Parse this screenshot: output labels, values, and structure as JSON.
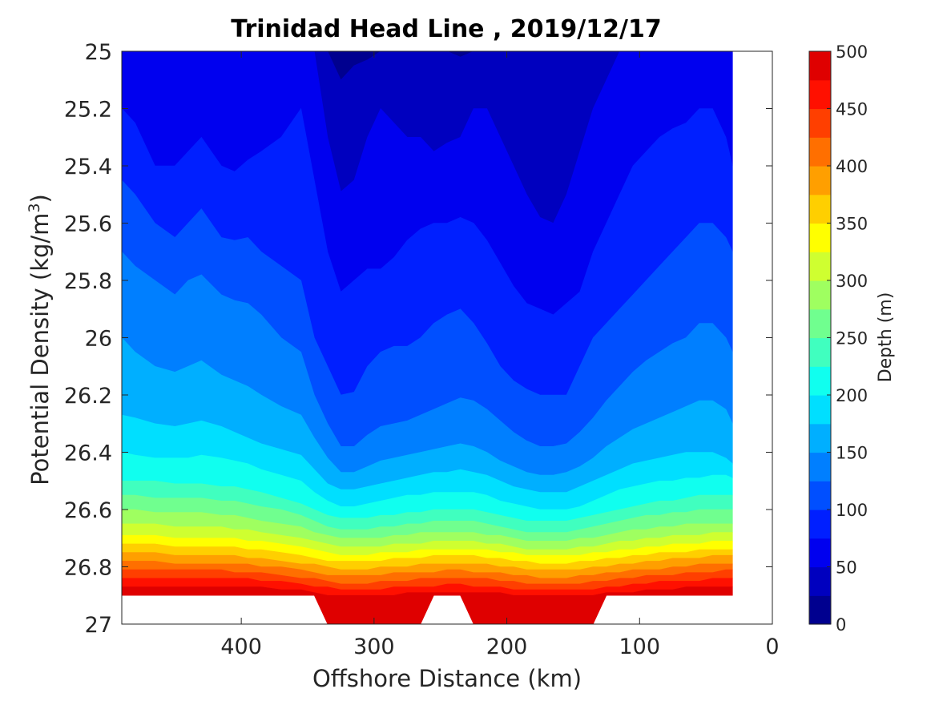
{
  "chart_data": {
    "type": "heatmap",
    "subtype": "filled-contour",
    "title": "Trinidad Head Line , 2019/12/17",
    "xlabel": "Offshore Distance (km)",
    "ylabel": "Potential Density (kg/m",
    "ylabel_superscript": "3",
    "ylabel_close": ")",
    "x_axis_reversed": true,
    "y_axis_reversed": true,
    "xlim": [
      0,
      490
    ],
    "ylim": [
      25,
      27
    ],
    "xticks": [
      400,
      300,
      200,
      100,
      0
    ],
    "yticks": [
      25,
      25.2,
      25.4,
      25.6,
      25.8,
      26,
      26.2,
      26.4,
      26.6,
      26.8,
      27
    ],
    "grid": false,
    "colorbar": {
      "label": "Depth (m)",
      "range": [
        0,
        500
      ],
      "level_step": 25,
      "ticks": [
        0,
        50,
        100,
        150,
        200,
        250,
        300,
        350,
        400,
        450,
        500
      ],
      "colors": [
        "#00008f",
        "#0000bf",
        "#0000ef",
        "#001fff",
        "#004fff",
        "#007fff",
        "#00afff",
        "#00dfff",
        "#10ffef",
        "#40ffbf",
        "#70ff8f",
        "#9fff60",
        "#cfff30",
        "#ffff00",
        "#ffcf00",
        "#ff9f00",
        "#ff6f00",
        "#ff3f00",
        "#ff1000",
        "#df0000"
      ]
    },
    "x_stations_km": [
      490,
      480,
      465,
      450,
      440,
      430,
      415,
      405,
      395,
      385,
      370,
      355,
      345,
      335,
      325,
      315,
      305,
      295,
      285,
      275,
      265,
      255,
      245,
      235,
      225,
      215,
      205,
      195,
      185,
      175,
      165,
      155,
      145,
      135,
      125,
      115,
      105,
      95,
      85,
      75,
      65,
      55,
      45,
      35,
      30
    ],
    "depth_isolines": [
      {
        "depth": 25,
        "density": [
          25.0,
          25.0,
          25.0,
          25.0,
          25.0,
          25.0,
          25.0,
          25.0,
          25.0,
          25.0,
          25.0,
          25.0,
          25.0,
          25.0,
          25.1,
          25.05,
          25.03,
          25.0,
          25.0,
          25.0,
          25.0,
          25.0,
          25.0,
          25.02,
          25.0,
          25.0,
          25.0,
          25.0,
          25.0,
          25.0,
          25.0,
          25.0,
          25.0,
          25.0,
          25.0,
          25.0,
          25.0,
          25.0,
          25.0,
          25.0,
          25.0,
          25.0,
          25.0,
          25.0,
          25.0
        ]
      },
      {
        "depth": 50,
        "density": [
          25.0,
          25.0,
          25.0,
          25.0,
          25.0,
          25.0,
          25.0,
          25.0,
          25.0,
          25.0,
          25.0,
          25.0,
          25.0,
          25.3,
          25.49,
          25.45,
          25.3,
          25.2,
          25.25,
          25.3,
          25.3,
          25.35,
          25.32,
          25.3,
          25.2,
          25.2,
          25.3,
          25.4,
          25.5,
          25.58,
          25.6,
          25.5,
          25.35,
          25.2,
          25.1,
          25.0,
          25.0,
          25.0,
          25.0,
          25.0,
          25.0,
          25.0,
          25.0,
          25.0,
          25.0
        ]
      },
      {
        "depth": 75,
        "density": [
          25.2,
          25.25,
          25.4,
          25.4,
          25.35,
          25.3,
          25.4,
          25.42,
          25.38,
          25.35,
          25.3,
          25.2,
          25.45,
          25.7,
          25.84,
          25.8,
          25.76,
          25.76,
          25.72,
          25.66,
          25.62,
          25.6,
          25.6,
          25.58,
          25.6,
          25.66,
          25.74,
          25.82,
          25.88,
          25.9,
          25.92,
          25.88,
          25.84,
          25.7,
          25.6,
          25.5,
          25.4,
          25.35,
          25.3,
          25.27,
          25.25,
          25.2,
          25.2,
          25.3,
          25.4
        ]
      },
      {
        "depth": 100,
        "density": [
          25.45,
          25.5,
          25.6,
          25.65,
          25.6,
          25.55,
          25.65,
          25.66,
          25.65,
          25.7,
          25.75,
          25.8,
          26.0,
          26.1,
          26.2,
          26.19,
          26.1,
          26.05,
          26.03,
          26.03,
          26.0,
          25.95,
          25.92,
          25.9,
          25.95,
          26.02,
          26.1,
          26.15,
          26.18,
          26.2,
          26.2,
          26.2,
          26.1,
          26.0,
          25.95,
          25.9,
          25.85,
          25.8,
          25.75,
          25.7,
          25.65,
          25.6,
          25.6,
          25.65,
          25.7
        ]
      },
      {
        "depth": 125,
        "density": [
          25.7,
          25.75,
          25.8,
          25.85,
          25.8,
          25.78,
          25.85,
          25.87,
          25.88,
          25.92,
          26.0,
          26.05,
          26.2,
          26.3,
          26.38,
          26.38,
          26.34,
          26.31,
          26.3,
          26.29,
          26.27,
          26.25,
          26.23,
          26.21,
          26.22,
          26.25,
          26.29,
          26.33,
          26.36,
          26.38,
          26.38,
          26.37,
          26.33,
          26.28,
          26.22,
          26.17,
          26.12,
          26.08,
          26.05,
          26.02,
          26.0,
          25.95,
          25.95,
          26.0,
          26.05
        ]
      },
      {
        "depth": 150,
        "density": [
          26.0,
          26.05,
          26.1,
          26.12,
          26.1,
          26.08,
          26.13,
          26.15,
          26.17,
          26.2,
          26.24,
          26.27,
          26.35,
          26.42,
          26.47,
          26.47,
          26.45,
          26.43,
          26.42,
          26.41,
          26.4,
          26.39,
          26.38,
          26.37,
          26.38,
          26.4,
          26.43,
          26.45,
          26.47,
          26.48,
          26.48,
          26.47,
          26.45,
          26.42,
          26.38,
          26.35,
          26.32,
          26.3,
          26.28,
          26.26,
          26.24,
          26.22,
          26.22,
          26.25,
          26.3
        ]
      },
      {
        "depth": 175,
        "density": [
          26.27,
          26.28,
          26.3,
          26.31,
          26.3,
          26.29,
          26.31,
          26.33,
          26.35,
          26.37,
          26.39,
          26.41,
          26.46,
          26.51,
          26.53,
          26.53,
          26.52,
          26.51,
          26.5,
          26.49,
          26.48,
          26.47,
          26.47,
          26.46,
          26.47,
          26.48,
          26.5,
          26.52,
          26.53,
          26.54,
          26.54,
          26.54,
          26.52,
          26.5,
          26.48,
          26.46,
          26.44,
          26.43,
          26.42,
          26.41,
          26.4,
          26.4,
          26.4,
          26.42,
          26.44
        ]
      },
      {
        "depth": 200,
        "density": [
          26.4,
          26.41,
          26.42,
          26.42,
          26.42,
          26.41,
          26.42,
          26.43,
          26.44,
          26.46,
          26.48,
          26.5,
          26.54,
          26.57,
          26.59,
          26.59,
          26.58,
          26.57,
          26.56,
          26.55,
          26.55,
          26.54,
          26.54,
          26.54,
          26.54,
          26.55,
          26.57,
          26.58,
          26.59,
          26.6,
          26.6,
          26.6,
          26.59,
          26.57,
          26.55,
          26.53,
          26.52,
          26.51,
          26.5,
          26.5,
          26.49,
          26.49,
          26.48,
          26.48,
          26.49
        ]
      },
      {
        "depth": 225,
        "density": [
          26.5,
          26.5,
          26.5,
          26.51,
          26.51,
          26.51,
          26.52,
          26.52,
          26.53,
          26.54,
          26.56,
          26.58,
          26.6,
          26.62,
          26.63,
          26.63,
          26.63,
          26.62,
          26.62,
          26.61,
          26.61,
          26.6,
          26.6,
          26.6,
          26.6,
          26.61,
          26.62,
          26.63,
          26.64,
          26.64,
          26.64,
          26.64,
          26.63,
          26.62,
          26.61,
          26.6,
          26.59,
          26.58,
          26.57,
          26.57,
          26.56,
          26.55,
          26.55,
          26.55,
          26.55
        ]
      },
      {
        "depth": 250,
        "density": [
          26.55,
          26.55,
          26.56,
          26.56,
          26.56,
          26.56,
          26.57,
          26.57,
          26.58,
          26.59,
          26.6,
          26.62,
          26.64,
          26.66,
          26.67,
          26.67,
          26.67,
          26.66,
          26.66,
          26.65,
          26.65,
          26.64,
          26.64,
          26.64,
          26.64,
          26.65,
          26.66,
          26.67,
          26.68,
          26.68,
          26.68,
          26.68,
          26.67,
          26.66,
          26.65,
          26.64,
          26.63,
          26.62,
          26.62,
          26.61,
          26.61,
          26.6,
          26.6,
          26.6,
          26.6
        ]
      },
      {
        "depth": 275,
        "density": [
          26.6,
          26.6,
          26.61,
          26.61,
          26.61,
          26.61,
          26.62,
          26.62,
          26.63,
          26.64,
          26.65,
          26.66,
          26.68,
          26.69,
          26.7,
          26.7,
          26.7,
          26.7,
          26.69,
          26.69,
          26.68,
          26.68,
          26.68,
          26.68,
          26.68,
          26.69,
          26.69,
          26.7,
          26.71,
          26.71,
          26.71,
          26.71,
          26.7,
          26.7,
          26.69,
          26.68,
          26.67,
          26.67,
          26.66,
          26.66,
          26.65,
          26.65,
          26.65,
          26.65,
          26.65
        ]
      },
      {
        "depth": 300,
        "density": [
          26.65,
          26.65,
          26.65,
          26.66,
          26.66,
          26.66,
          26.66,
          26.67,
          26.67,
          26.68,
          26.69,
          26.7,
          26.71,
          26.72,
          26.73,
          26.73,
          26.73,
          26.73,
          26.72,
          26.72,
          26.72,
          26.71,
          26.71,
          26.71,
          26.71,
          26.72,
          26.72,
          26.73,
          26.74,
          26.74,
          26.74,
          26.74,
          26.73,
          26.73,
          26.72,
          26.71,
          26.71,
          26.7,
          26.7,
          26.69,
          26.69,
          26.69,
          26.68,
          26.68,
          26.68
        ]
      },
      {
        "depth": 325,
        "density": [
          26.69,
          26.69,
          26.69,
          26.7,
          26.7,
          26.7,
          26.7,
          26.7,
          26.71,
          26.71,
          26.72,
          26.73,
          26.74,
          26.75,
          26.76,
          26.76,
          26.76,
          26.75,
          26.75,
          26.75,
          26.74,
          26.74,
          26.74,
          26.74,
          26.74,
          26.74,
          26.75,
          26.75,
          26.76,
          26.76,
          26.76,
          26.76,
          26.76,
          26.75,
          26.75,
          26.74,
          26.74,
          26.73,
          26.73,
          26.72,
          26.72,
          26.72,
          26.71,
          26.71,
          26.71
        ]
      },
      {
        "depth": 350,
        "density": [
          26.72,
          26.72,
          26.72,
          26.73,
          26.73,
          26.73,
          26.73,
          26.73,
          26.74,
          26.74,
          26.75,
          26.76,
          26.77,
          26.78,
          26.78,
          26.78,
          26.78,
          26.78,
          26.77,
          26.77,
          26.77,
          26.76,
          26.76,
          26.76,
          26.76,
          26.77,
          26.77,
          26.78,
          26.78,
          26.79,
          26.79,
          26.79,
          26.78,
          26.78,
          26.77,
          26.77,
          26.76,
          26.76,
          26.75,
          26.75,
          26.75,
          26.74,
          26.74,
          26.74,
          26.74
        ]
      },
      {
        "depth": 375,
        "density": [
          26.75,
          26.75,
          26.75,
          26.76,
          26.76,
          26.76,
          26.76,
          26.76,
          26.77,
          26.77,
          26.78,
          26.79,
          26.79,
          26.8,
          26.81,
          26.81,
          26.81,
          26.8,
          26.8,
          26.8,
          26.79,
          26.79,
          26.79,
          26.79,
          26.79,
          26.79,
          26.8,
          26.8,
          26.81,
          26.81,
          26.81,
          26.81,
          26.81,
          26.8,
          26.8,
          26.79,
          26.79,
          26.78,
          26.78,
          26.77,
          26.77,
          26.77,
          26.76,
          26.76,
          26.76
        ]
      },
      {
        "depth": 400,
        "density": [
          26.78,
          26.78,
          26.78,
          26.79,
          26.79,
          26.79,
          26.79,
          26.79,
          26.79,
          26.8,
          26.8,
          26.81,
          26.82,
          26.83,
          26.83,
          26.83,
          26.83,
          26.83,
          26.82,
          26.82,
          26.82,
          26.82,
          26.81,
          26.81,
          26.82,
          26.82,
          26.82,
          26.83,
          26.83,
          26.84,
          26.84,
          26.84,
          26.83,
          26.83,
          26.82,
          26.82,
          26.81,
          26.81,
          26.81,
          26.8,
          26.8,
          26.79,
          26.79,
          26.79,
          26.79
        ]
      },
      {
        "depth": 425,
        "density": [
          26.81,
          26.81,
          26.81,
          26.81,
          26.81,
          26.81,
          26.81,
          26.82,
          26.82,
          26.82,
          26.83,
          26.84,
          26.84,
          26.85,
          26.86,
          26.86,
          26.86,
          26.85,
          26.85,
          26.85,
          26.84,
          26.84,
          26.84,
          26.84,
          26.84,
          26.84,
          26.85,
          26.85,
          26.86,
          26.86,
          26.86,
          26.86,
          26.86,
          26.85,
          26.85,
          26.84,
          26.84,
          26.83,
          26.83,
          26.83,
          26.82,
          26.82,
          26.82,
          26.81,
          26.81
        ]
      },
      {
        "depth": 450,
        "density": [
          26.84,
          26.84,
          26.84,
          26.84,
          26.84,
          26.84,
          26.84,
          26.84,
          26.84,
          26.85,
          26.85,
          26.86,
          26.87,
          26.87,
          26.88,
          26.88,
          26.88,
          26.88,
          26.87,
          26.87,
          26.87,
          26.87,
          26.86,
          26.86,
          26.87,
          26.87,
          26.87,
          26.88,
          26.88,
          26.88,
          26.88,
          26.88,
          26.88,
          26.88,
          26.87,
          26.87,
          26.86,
          26.86,
          26.85,
          26.85,
          26.85,
          26.85,
          26.84,
          26.84,
          26.84
        ]
      },
      {
        "depth": 475,
        "density": [
          26.87,
          26.87,
          26.87,
          26.87,
          26.87,
          26.87,
          26.87,
          26.87,
          26.87,
          26.87,
          26.88,
          26.88,
          26.89,
          26.9,
          26.9,
          26.9,
          26.9,
          26.9,
          26.9,
          26.89,
          26.89,
          26.89,
          26.89,
          26.89,
          26.89,
          26.89,
          26.89,
          26.9,
          26.9,
          26.9,
          26.9,
          26.9,
          26.9,
          26.9,
          26.89,
          26.89,
          26.89,
          26.88,
          26.88,
          26.88,
          26.87,
          26.87,
          26.87,
          26.87,
          26.87
        ]
      }
    ],
    "bottom_boundary_density": [
      26.9,
      26.9,
      26.9,
      26.9,
      26.9,
      26.9,
      26.9,
      26.9,
      26.9,
      26.9,
      26.9,
      26.9,
      26.9,
      27.0,
      27.0,
      27.0,
      27.0,
      27.0,
      27.0,
      27.0,
      27.0,
      26.9,
      26.9,
      26.9,
      27.0,
      27.0,
      27.0,
      27.0,
      27.0,
      27.0,
      27.0,
      27.0,
      27.0,
      27.0,
      26.9,
      26.9,
      26.9,
      26.9,
      26.9,
      26.9,
      26.9,
      26.9,
      26.9,
      26.9,
      26.9
    ],
    "data_extent_km": [
      30,
      490
    ]
  }
}
